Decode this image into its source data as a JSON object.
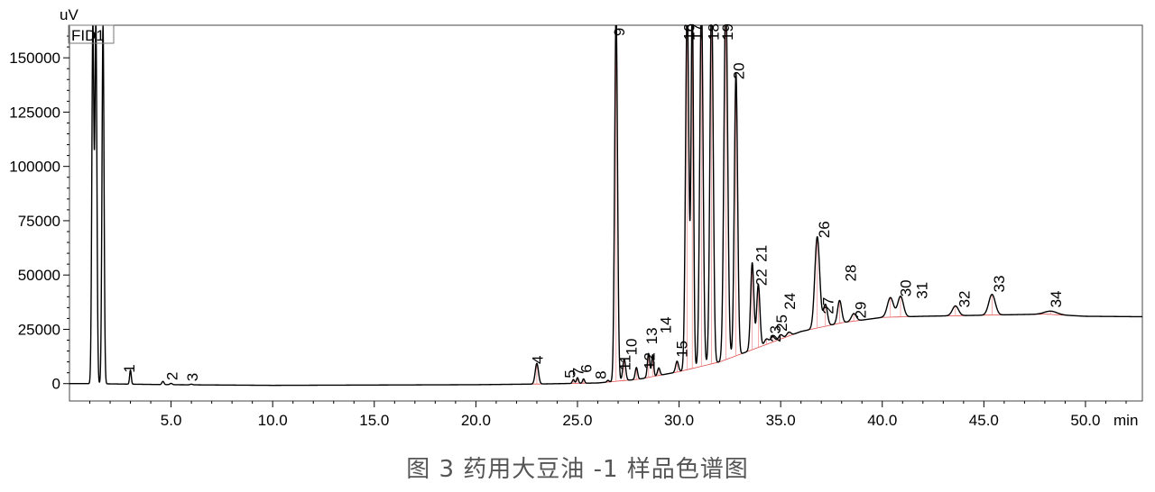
{
  "caption": "图 3    药用大豆油 -1 样品色谱图",
  "chart_data": {
    "type": "line",
    "title": "",
    "xlabel": "min",
    "ylabel": "uV",
    "legend": [
      "FID1"
    ],
    "xlim": [
      0,
      52.8
    ],
    "ylim": [
      -8000,
      165000
    ],
    "x_ticks": [
      5.0,
      10.0,
      15.0,
      20.0,
      25.0,
      30.0,
      35.0,
      40.0,
      45.0,
      50.0
    ],
    "x_tick_labels": [
      "5.0",
      "10.0",
      "15.0",
      "20.0",
      "25.0",
      "30.0",
      "35.0",
      "40.0",
      "45.0",
      "50.0"
    ],
    "y_ticks": [
      0,
      25000,
      50000,
      75000,
      100000,
      125000,
      150000
    ],
    "y_tick_labels": [
      "0",
      "25000",
      "50000",
      "75000",
      "100000",
      "125000",
      "150000"
    ],
    "grid": false,
    "series": [
      {
        "name": "FID1",
        "baseline": [
          [
            0,
            0
          ],
          [
            1,
            0
          ],
          [
            5,
            -500
          ],
          [
            10,
            -800
          ],
          [
            20,
            -500
          ],
          [
            23,
            -200
          ],
          [
            26,
            300
          ],
          [
            28,
            2000
          ],
          [
            30,
            5500
          ],
          [
            32,
            10000
          ],
          [
            34,
            17000
          ],
          [
            36,
            24000
          ],
          [
            38,
            28000
          ],
          [
            40,
            30500
          ],
          [
            42,
            31000
          ],
          [
            45,
            31500
          ],
          [
            48,
            32000
          ],
          [
            50,
            31000
          ],
          [
            52.8,
            30800
          ]
        ],
        "peaks": [
          {
            "x": 1.15,
            "height": 165000,
            "width": 0.05
          },
          {
            "x": 1.3,
            "height": 165000,
            "width": 0.05
          },
          {
            "x": 1.65,
            "height": 165000,
            "width": 0.05
          },
          {
            "x": 3.0,
            "height": 6500,
            "width": 0.04
          },
          {
            "x": 4.6,
            "height": 1500,
            "width": 0.05
          },
          {
            "x": 5.0,
            "height": 600,
            "width": 0.06
          },
          {
            "x": 6.0,
            "height": 300,
            "width": 0.06
          },
          {
            "x": 23.0,
            "height": 9500,
            "width": 0.08
          },
          {
            "x": 24.8,
            "height": 1800,
            "width": 0.05
          },
          {
            "x": 25.0,
            "height": 2600,
            "width": 0.05
          },
          {
            "x": 25.3,
            "height": 2000,
            "width": 0.05
          },
          {
            "x": 26.5,
            "height": 800,
            "width": 0.05
          },
          {
            "x": 26.9,
            "height": 170000,
            "width": 0.07
          },
          {
            "x": 27.3,
            "height": 10000,
            "width": 0.07
          },
          {
            "x": 27.9,
            "height": 5500,
            "width": 0.06
          },
          {
            "x": 28.5,
            "height": 11000,
            "width": 0.06
          },
          {
            "x": 28.7,
            "height": 10000,
            "width": 0.05
          },
          {
            "x": 29.0,
            "height": 3500,
            "width": 0.06
          },
          {
            "x": 29.9,
            "height": 5000,
            "width": 0.07
          },
          {
            "x": 30.4,
            "height": 170000,
            "width": 0.08
          },
          {
            "x": 30.65,
            "height": 170000,
            "width": 0.06
          },
          {
            "x": 31.1,
            "height": 170000,
            "width": 0.08
          },
          {
            "x": 31.6,
            "height": 170000,
            "width": 0.08
          },
          {
            "x": 32.3,
            "height": 170000,
            "width": 0.09
          },
          {
            "x": 32.8,
            "height": 130000,
            "width": 0.08
          },
          {
            "x": 33.6,
            "height": 40000,
            "width": 0.08
          },
          {
            "x": 33.9,
            "height": 29000,
            "width": 0.08
          },
          {
            "x": 34.3,
            "height": 2500,
            "width": 0.1
          },
          {
            "x": 34.6,
            "height": 2500,
            "width": 0.1
          },
          {
            "x": 35.0,
            "height": 2000,
            "width": 0.1
          },
          {
            "x": 35.4,
            "height": 1800,
            "width": 0.1
          },
          {
            "x": 36.8,
            "height": 42000,
            "width": 0.12
          },
          {
            "x": 37.2,
            "height": 10000,
            "width": 0.1
          },
          {
            "x": 37.9,
            "height": 10500,
            "width": 0.1
          },
          {
            "x": 38.6,
            "height": 3500,
            "width": 0.12
          },
          {
            "x": 40.4,
            "height": 9000,
            "width": 0.15
          },
          {
            "x": 40.9,
            "height": 9500,
            "width": 0.14
          },
          {
            "x": 43.6,
            "height": 4500,
            "width": 0.15
          },
          {
            "x": 45.4,
            "height": 9500,
            "width": 0.16
          },
          {
            "x": 48.3,
            "height": 1500,
            "width": 0.3
          }
        ]
      }
    ],
    "peak_labels": [
      {
        "text": "1",
        "x": 3.2,
        "y": 5000
      },
      {
        "text": "2",
        "x": 5.3,
        "y": 1500
      },
      {
        "text": "3",
        "x": 6.3,
        "y": 1000
      },
      {
        "text": "4",
        "x": 23.3,
        "y": 9000
      },
      {
        "text": "5",
        "x": 24.9,
        "y": 2500
      },
      {
        "text": "6",
        "x": 25.7,
        "y": 5000
      },
      {
        "text": "7",
        "x": 25.3,
        "y": 3500
      },
      {
        "text": "8",
        "x": 26.4,
        "y": 2000
      },
      {
        "text": "9",
        "x": 27.3,
        "y": 160000
      },
      {
        "text": "10",
        "x": 27.9,
        "y": 13000
      },
      {
        "text": "11",
        "x": 27.6,
        "y": 6000
      },
      {
        "text": "12",
        "x": 28.8,
        "y": 6500
      },
      {
        "text": "13",
        "x": 28.9,
        "y": 18000
      },
      {
        "text": "14",
        "x": 29.6,
        "y": 23000
      },
      {
        "text": "15",
        "x": 30.4,
        "y": 12000
      },
      {
        "text": "16",
        "x": 30.75,
        "y": 158000
      },
      {
        "text": "17",
        "x": 31.15,
        "y": 158000
      },
      {
        "text": "18",
        "x": 31.95,
        "y": 158000
      },
      {
        "text": "19",
        "x": 32.65,
        "y": 158000
      },
      {
        "text": "20",
        "x": 33.2,
        "y": 140000
      },
      {
        "text": "21",
        "x": 34.3,
        "y": 56000
      },
      {
        "text": "22",
        "x": 34.3,
        "y": 45000
      },
      {
        "text": "23",
        "x": 35.0,
        "y": 19000
      },
      {
        "text": "24",
        "x": 35.7,
        "y": 34000
      },
      {
        "text": "25",
        "x": 35.3,
        "y": 24000
      },
      {
        "text": "26",
        "x": 37.4,
        "y": 67000
      },
      {
        "text": "27",
        "x": 37.6,
        "y": 32000
      },
      {
        "text": "28",
        "x": 38.7,
        "y": 47000
      },
      {
        "text": "29",
        "x": 39.2,
        "y": 30000
      },
      {
        "text": "30",
        "x": 41.4,
        "y": 40000
      },
      {
        "text": "31",
        "x": 42.2,
        "y": 39000
      },
      {
        "text": "32",
        "x": 44.3,
        "y": 35000
      },
      {
        "text": "33",
        "x": 46.0,
        "y": 42000
      },
      {
        "text": "34",
        "x": 48.8,
        "y": 35000
      }
    ]
  }
}
